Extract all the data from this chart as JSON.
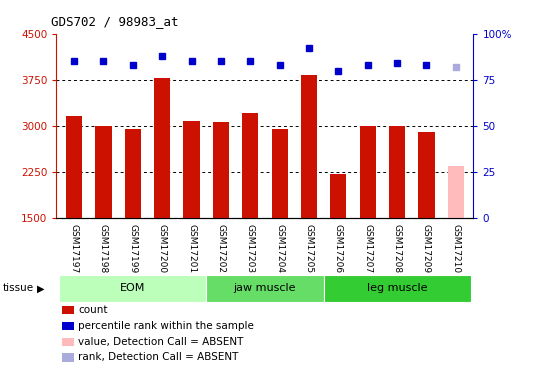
{
  "title": "GDS702 / 98983_at",
  "samples": [
    "GSM17197",
    "GSM17198",
    "GSM17199",
    "GSM17200",
    "GSM17201",
    "GSM17202",
    "GSM17203",
    "GSM17204",
    "GSM17205",
    "GSM17206",
    "GSM17207",
    "GSM17208",
    "GSM17209",
    "GSM17210"
  ],
  "bar_values": [
    3160,
    3000,
    2940,
    3780,
    3070,
    3060,
    3200,
    2940,
    3820,
    2210,
    2990,
    3000,
    2900,
    2340
  ],
  "bar_colors": [
    "#cc1100",
    "#cc1100",
    "#cc1100",
    "#cc1100",
    "#cc1100",
    "#cc1100",
    "#cc1100",
    "#cc1100",
    "#cc1100",
    "#cc1100",
    "#cc1100",
    "#cc1100",
    "#cc1100",
    "#ffbbbb"
  ],
  "rank_values": [
    85,
    85,
    83,
    88,
    85,
    85,
    85,
    83,
    92,
    80,
    83,
    84,
    83,
    82
  ],
  "rank_colors": [
    "#0000cc",
    "#0000cc",
    "#0000cc",
    "#0000cc",
    "#0000cc",
    "#0000cc",
    "#0000cc",
    "#0000cc",
    "#0000cc",
    "#0000cc",
    "#0000cc",
    "#0000cc",
    "#0000cc",
    "#aaaadd"
  ],
  "ylim_left": [
    1500,
    4500
  ],
  "ylim_right": [
    0,
    100
  ],
  "yticks_left": [
    1500,
    2250,
    3000,
    3750,
    4500
  ],
  "yticks_right": [
    0,
    25,
    50,
    75,
    100
  ],
  "grid_values": [
    2250,
    3000,
    3750
  ],
  "tissue_groups": [
    {
      "label": "EOM",
      "indices": [
        0,
        1,
        2,
        3,
        4
      ],
      "color": "#bbffbb"
    },
    {
      "label": "jaw muscle",
      "indices": [
        5,
        6,
        7,
        8
      ],
      "color": "#66dd66"
    },
    {
      "label": "leg muscle",
      "indices": [
        9,
        10,
        11,
        12,
        13
      ],
      "color": "#33cc33"
    }
  ],
  "tissue_label": "tissue",
  "legend_items": [
    {
      "color": "#cc1100",
      "label": "count",
      "marker": "s"
    },
    {
      "color": "#0000cc",
      "label": "percentile rank within the sample",
      "marker": "s"
    },
    {
      "color": "#ffbbbb",
      "label": "value, Detection Call = ABSENT",
      "marker": "s"
    },
    {
      "color": "#aaaadd",
      "label": "rank, Detection Call = ABSENT",
      "marker": "s"
    }
  ],
  "left_tick_color": "#cc1100",
  "right_tick_color": "#0000cc",
  "bg_color": "#ffffff",
  "xticklabel_bg": "#d4d4d4",
  "bar_width": 0.55
}
